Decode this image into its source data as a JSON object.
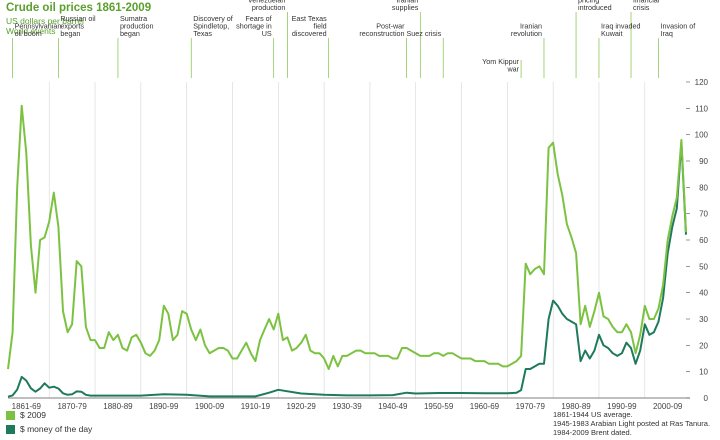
{
  "chart_data": {
    "type": "line",
    "title": "Crude oil prices 1861-2009",
    "subtitle_units": "US dollars per barrel",
    "subtitle_events": "World events",
    "ylim": [
      0,
      120
    ],
    "yticks": [
      0,
      10,
      20,
      30,
      40,
      50,
      60,
      70,
      80,
      90,
      100,
      110,
      120
    ],
    "xlim": [
      1861,
      2009
    ],
    "x_tick_labels": [
      {
        "label": "1861-69",
        "x": 1865
      },
      {
        "label": "1870-79",
        "x": 1875
      },
      {
        "label": "1880-89",
        "x": 1885
      },
      {
        "label": "1890-99",
        "x": 1895
      },
      {
        "label": "1900-09",
        "x": 1905
      },
      {
        "label": "1910-19",
        "x": 1915
      },
      {
        "label": "1920-29",
        "x": 1925
      },
      {
        "label": "1930-39",
        "x": 1935
      },
      {
        "label": "1940-49",
        "x": 1945
      },
      {
        "label": "1950-59",
        "x": 1955
      },
      {
        "label": "1960-69",
        "x": 1965
      },
      {
        "label": "1970-79",
        "x": 1975
      },
      {
        "label": "1980-89",
        "x": 1985
      },
      {
        "label": "1990-99",
        "x": 1995
      },
      {
        "label": "2000-09",
        "x": 2005
      }
    ],
    "grid": "vertical lines at decade boundaries",
    "legend_position": "bottom-left",
    "colors": {
      "real": "#7cc242",
      "nominal": "#1f7a5c",
      "event_line": "#7cc242",
      "title": "#5aa02c"
    },
    "series": [
      {
        "name": "$ 2009",
        "color": "#7cc242",
        "points": [
          [
            1861,
            11
          ],
          [
            1862,
            25
          ],
          [
            1863,
            80
          ],
          [
            1864,
            111
          ],
          [
            1865,
            93
          ],
          [
            1866,
            58
          ],
          [
            1867,
            40
          ],
          [
            1868,
            60
          ],
          [
            1869,
            61
          ],
          [
            1870,
            67
          ],
          [
            1871,
            78
          ],
          [
            1872,
            65
          ],
          [
            1873,
            33
          ],
          [
            1874,
            25
          ],
          [
            1875,
            28
          ],
          [
            1876,
            52
          ],
          [
            1877,
            50
          ],
          [
            1878,
            27
          ],
          [
            1879,
            22
          ],
          [
            1880,
            22
          ],
          [
            1881,
            19
          ],
          [
            1882,
            19
          ],
          [
            1883,
            25
          ],
          [
            1884,
            22
          ],
          [
            1885,
            24
          ],
          [
            1886,
            19
          ],
          [
            1887,
            18
          ],
          [
            1888,
            23
          ],
          [
            1889,
            24
          ],
          [
            1890,
            21
          ],
          [
            1891,
            17
          ],
          [
            1892,
            16
          ],
          [
            1893,
            18
          ],
          [
            1894,
            22
          ],
          [
            1895,
            35
          ],
          [
            1896,
            32
          ],
          [
            1897,
            22
          ],
          [
            1898,
            24
          ],
          [
            1899,
            33
          ],
          [
            1900,
            32
          ],
          [
            1901,
            26
          ],
          [
            1902,
            22
          ],
          [
            1903,
            26
          ],
          [
            1904,
            20
          ],
          [
            1905,
            17
          ],
          [
            1906,
            18
          ],
          [
            1907,
            19
          ],
          [
            1908,
            19
          ],
          [
            1909,
            18
          ],
          [
            1910,
            15
          ],
          [
            1911,
            15
          ],
          [
            1912,
            18
          ],
          [
            1913,
            21
          ],
          [
            1914,
            17
          ],
          [
            1915,
            14
          ],
          [
            1916,
            22
          ],
          [
            1917,
            26
          ],
          [
            1918,
            30
          ],
          [
            1919,
            26
          ],
          [
            1920,
            32
          ],
          [
            1921,
            22
          ],
          [
            1922,
            23
          ],
          [
            1923,
            18
          ],
          [
            1924,
            19
          ],
          [
            1925,
            21
          ],
          [
            1926,
            24
          ],
          [
            1927,
            18
          ],
          [
            1928,
            17
          ],
          [
            1929,
            17
          ],
          [
            1930,
            15
          ],
          [
            1931,
            11
          ],
          [
            1932,
            16
          ],
          [
            1933,
            12
          ],
          [
            1934,
            16
          ],
          [
            1935,
            16
          ],
          [
            1936,
            17
          ],
          [
            1937,
            18
          ],
          [
            1938,
            18
          ],
          [
            1939,
            17
          ],
          [
            1940,
            17
          ],
          [
            1941,
            17
          ],
          [
            1942,
            16
          ],
          [
            1943,
            16
          ],
          [
            1944,
            16
          ],
          [
            1945,
            15
          ],
          [
            1946,
            15
          ],
          [
            1947,
            19
          ],
          [
            1948,
            19
          ],
          [
            1949,
            18
          ],
          [
            1950,
            17
          ],
          [
            1951,
            16
          ],
          [
            1952,
            16
          ],
          [
            1953,
            16
          ],
          [
            1954,
            17
          ],
          [
            1955,
            17
          ],
          [
            1956,
            16
          ],
          [
            1957,
            17
          ],
          [
            1958,
            17
          ],
          [
            1959,
            16
          ],
          [
            1960,
            15
          ],
          [
            1961,
            15
          ],
          [
            1962,
            15
          ],
          [
            1963,
            14
          ],
          [
            1964,
            14
          ],
          [
            1965,
            14
          ],
          [
            1966,
            13
          ],
          [
            1967,
            13
          ],
          [
            1968,
            13
          ],
          [
            1969,
            12
          ],
          [
            1970,
            12
          ],
          [
            1971,
            13
          ],
          [
            1972,
            14
          ],
          [
            1973,
            16
          ],
          [
            1974,
            51
          ],
          [
            1975,
            47
          ],
          [
            1976,
            49
          ],
          [
            1977,
            50
          ],
          [
            1978,
            47
          ],
          [
            1979,
            95
          ],
          [
            1980,
            97
          ],
          [
            1981,
            85
          ],
          [
            1982,
            77
          ],
          [
            1983,
            66
          ],
          [
            1984,
            61
          ],
          [
            1985,
            55
          ],
          [
            1986,
            28
          ],
          [
            1987,
            35
          ],
          [
            1988,
            27
          ],
          [
            1989,
            33
          ],
          [
            1990,
            40
          ],
          [
            1991,
            31
          ],
          [
            1992,
            30
          ],
          [
            1993,
            27
          ],
          [
            1994,
            25
          ],
          [
            1995,
            25
          ],
          [
            1996,
            28
          ],
          [
            1997,
            25
          ],
          [
            1998,
            17
          ],
          [
            1999,
            24
          ],
          [
            2000,
            35
          ],
          [
            2001,
            30
          ],
          [
            2002,
            30
          ],
          [
            2003,
            34
          ],
          [
            2004,
            43
          ],
          [
            2005,
            60
          ],
          [
            2006,
            69
          ],
          [
            2007,
            76
          ],
          [
            2008,
            98
          ],
          [
            2009,
            63
          ]
        ]
      },
      {
        "name": "$ money of the day",
        "color": "#1f7a5c",
        "points": [
          [
            1861,
            0.5
          ],
          [
            1862,
            1
          ],
          [
            1863,
            3.2
          ],
          [
            1864,
            8
          ],
          [
            1865,
            6.6
          ],
          [
            1866,
            3.7
          ],
          [
            1867,
            2.4
          ],
          [
            1868,
            3.6
          ],
          [
            1869,
            5.6
          ],
          [
            1870,
            3.9
          ],
          [
            1871,
            4.3
          ],
          [
            1872,
            3.6
          ],
          [
            1873,
            1.8
          ],
          [
            1874,
            1.2
          ],
          [
            1875,
            1.4
          ],
          [
            1876,
            2.5
          ],
          [
            1877,
            2.4
          ],
          [
            1878,
            1.2
          ],
          [
            1879,
            0.9
          ],
          [
            1880,
            0.9
          ],
          [
            1885,
            0.9
          ],
          [
            1890,
            0.9
          ],
          [
            1895,
            1.4
          ],
          [
            1900,
            1.2
          ],
          [
            1905,
            0.6
          ],
          [
            1910,
            0.6
          ],
          [
            1915,
            0.6
          ],
          [
            1918,
            2
          ],
          [
            1920,
            3.1
          ],
          [
            1925,
            1.7
          ],
          [
            1930,
            1.2
          ],
          [
            1935,
            1
          ],
          [
            1940,
            1
          ],
          [
            1945,
            1.1
          ],
          [
            1948,
            2
          ],
          [
            1950,
            1.7
          ],
          [
            1955,
            1.9
          ],
          [
            1960,
            1.9
          ],
          [
            1965,
            1.8
          ],
          [
            1970,
            1.8
          ],
          [
            1972,
            2
          ],
          [
            1973,
            3
          ],
          [
            1974,
            11
          ],
          [
            1975,
            11
          ],
          [
            1976,
            12
          ],
          [
            1977,
            13
          ],
          [
            1978,
            13
          ],
          [
            1979,
            30
          ],
          [
            1980,
            37
          ],
          [
            1981,
            35
          ],
          [
            1982,
            32
          ],
          [
            1983,
            30
          ],
          [
            1984,
            29
          ],
          [
            1985,
            28
          ],
          [
            1986,
            14
          ],
          [
            1987,
            18
          ],
          [
            1988,
            15
          ],
          [
            1989,
            18
          ],
          [
            1990,
            24
          ],
          [
            1991,
            20
          ],
          [
            1992,
            19
          ],
          [
            1993,
            17
          ],
          [
            1994,
            16
          ],
          [
            1995,
            17
          ],
          [
            1996,
            21
          ],
          [
            1997,
            19
          ],
          [
            1998,
            13
          ],
          [
            1999,
            18
          ],
          [
            2000,
            28
          ],
          [
            2001,
            24
          ],
          [
            2002,
            25
          ],
          [
            2003,
            29
          ],
          [
            2004,
            38
          ],
          [
            2005,
            55
          ],
          [
            2006,
            65
          ],
          [
            2007,
            72
          ],
          [
            2008,
            97
          ],
          [
            2009,
            62
          ]
        ]
      }
    ],
    "events": [
      {
        "label": "Pennsylvanian oil boom",
        "year": 1862,
        "row": 2
      },
      {
        "label": "Russian oil exports began",
        "year": 1872,
        "row": 2
      },
      {
        "label": "Sumatra production began",
        "year": 1885,
        "row": 3
      },
      {
        "label": "Discovery of Spindletop, Texas",
        "year": 1901,
        "row": 3
      },
      {
        "label": "Growth of Venezuelan production",
        "year": 1922,
        "row": 0
      },
      {
        "label": "Fears of shortage in US",
        "year": 1919,
        "row": 3
      },
      {
        "label": "East Texas field discovered",
        "year": 1931,
        "row": 2
      },
      {
        "label": "Post-war reconstruction",
        "year": 1948,
        "row": 3
      },
      {
        "label": "Loss of Iranian supplies",
        "year": 1951,
        "row": 0
      },
      {
        "label": "Suez crisis",
        "year": 1956,
        "row": 3
      },
      {
        "label": "Yom Kippur war",
        "year": 1973,
        "row": 5
      },
      {
        "label": "Iranian revolution",
        "year": 1978,
        "row": 3
      },
      {
        "label": "Netback pricing introduced",
        "year": 1985,
        "row": 0
      },
      {
        "label": "Iraq invaded Kuwait",
        "year": 1990,
        "row": 3
      },
      {
        "label": "Asian financial crisis",
        "year": 1997,
        "row": 0
      },
      {
        "label": "Invasion of Iraq",
        "year": 2003,
        "row": 3
      }
    ],
    "notes": [
      "1861-1944 US average.",
      "1945-1983 Arabian Light posted at Ras Tanura.",
      "1984-2009 Brent dated."
    ]
  }
}
